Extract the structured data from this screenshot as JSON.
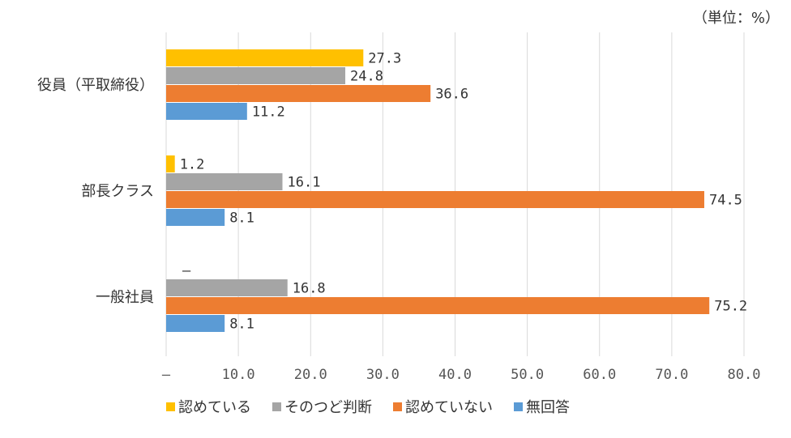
{
  "chart_data": {
    "type": "bar",
    "orientation": "horizontal",
    "unit_label": "（単位：%）",
    "categories": [
      "役員（平取締役）",
      "部長クラス",
      "一般社員"
    ],
    "series": [
      {
        "name": "認めている",
        "color": "#FFC000",
        "values": [
          27.3,
          1.2,
          null
        ],
        "labels": [
          "27.3",
          "1.2",
          "–"
        ]
      },
      {
        "name": "そのつど判断",
        "color": "#A5A5A5",
        "values": [
          24.8,
          16.1,
          16.8
        ],
        "labels": [
          "24.8",
          "16.1",
          "16.8"
        ]
      },
      {
        "name": "認めていない",
        "color": "#ED7D31",
        "values": [
          36.6,
          74.5,
          75.2
        ],
        "labels": [
          "36.6",
          "74.5",
          "75.2"
        ]
      },
      {
        "name": "無回答",
        "color": "#5B9BD5",
        "values": [
          11.2,
          8.1,
          8.1
        ],
        "labels": [
          "11.2",
          "8.1",
          "8.1"
        ]
      }
    ],
    "xlim": [
      0,
      80
    ],
    "xticks": [
      0,
      10,
      20,
      30,
      40,
      50,
      60,
      70,
      80
    ],
    "xtick_labels": [
      "–",
      "10.0",
      "20.0",
      "30.0",
      "40.0",
      "50.0",
      "60.0",
      "70.0",
      "80.0"
    ],
    "grid": true,
    "legend_position": "bottom"
  }
}
